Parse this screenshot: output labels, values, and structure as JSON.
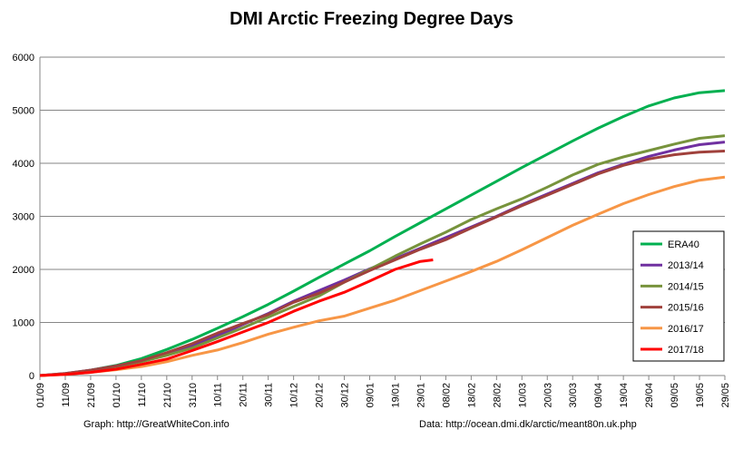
{
  "chart_data": {
    "type": "line",
    "title": "DMI Arctic Freezing Degree Days",
    "xlabel": "",
    "ylabel": "",
    "ylim": [
      0,
      6000
    ],
    "yticks": [
      0,
      1000,
      2000,
      3000,
      4000,
      5000,
      6000
    ],
    "x_tick_labels": [
      "01/09",
      "11/09",
      "21/09",
      "01/10",
      "11/10",
      "21/10",
      "31/10",
      "10/11",
      "20/11",
      "30/11",
      "10/12",
      "20/12",
      "30/12",
      "09/01",
      "19/01",
      "29/01",
      "08/02",
      "18/02",
      "28/02",
      "10/03",
      "20/03",
      "30/03",
      "09/04",
      "19/04",
      "29/04",
      "09/05",
      "19/05",
      "29/05"
    ],
    "x_unit": "day index from 01/09 (tick every 10 days)",
    "grid": true,
    "legend_position": "right",
    "series": [
      {
        "name": "ERA40",
        "color": "#00b050",
        "x": [
          0,
          10,
          20,
          30,
          40,
          50,
          60,
          70,
          80,
          90,
          100,
          110,
          120,
          130,
          140,
          150,
          160,
          170,
          180,
          190,
          200,
          210,
          220,
          230,
          240,
          250,
          260,
          270
        ],
        "y": [
          0,
          30,
          100,
          190,
          320,
          490,
          680,
          890,
          1110,
          1340,
          1590,
          1850,
          2100,
          2350,
          2620,
          2880,
          3140,
          3400,
          3660,
          3920,
          4170,
          4420,
          4660,
          4880,
          5080,
          5230,
          5330,
          5370
        ]
      },
      {
        "name": "2013/14",
        "color": "#7030a0",
        "x": [
          0,
          10,
          20,
          30,
          40,
          50,
          60,
          70,
          80,
          90,
          100,
          110,
          120,
          130,
          140,
          150,
          160,
          170,
          180,
          190,
          200,
          210,
          220,
          230,
          240,
          250,
          260,
          270
        ],
        "y": [
          0,
          40,
          100,
          180,
          270,
          400,
          560,
          750,
          960,
          1170,
          1400,
          1600,
          1800,
          2010,
          2200,
          2400,
          2600,
          2800,
          3000,
          3220,
          3420,
          3620,
          3820,
          3980,
          4130,
          4250,
          4350,
          4400
        ]
      },
      {
        "name": "2014/15",
        "color": "#77933c",
        "x": [
          0,
          10,
          20,
          30,
          40,
          50,
          60,
          70,
          80,
          90,
          100,
          110,
          120,
          130,
          140,
          150,
          160,
          170,
          180,
          190,
          200,
          210,
          220,
          230,
          240,
          250,
          260,
          270
        ],
        "y": [
          0,
          30,
          90,
          170,
          260,
          380,
          520,
          710,
          900,
          1100,
          1300,
          1500,
          1760,
          2000,
          2250,
          2480,
          2700,
          2940,
          3140,
          3330,
          3550,
          3780,
          3980,
          4120,
          4240,
          4360,
          4470,
          4520
        ]
      },
      {
        "name": "2015/16",
        "color": "#a0413c",
        "x": [
          0,
          10,
          20,
          30,
          40,
          50,
          60,
          70,
          80,
          90,
          100,
          110,
          120,
          130,
          140,
          150,
          160,
          170,
          180,
          190,
          200,
          210,
          220,
          230,
          240,
          250,
          260,
          270
        ],
        "y": [
          0,
          40,
          100,
          180,
          280,
          430,
          600,
          800,
          980,
          1150,
          1380,
          1550,
          1760,
          1980,
          2180,
          2380,
          2560,
          2780,
          2990,
          3200,
          3400,
          3600,
          3800,
          3960,
          4080,
          4160,
          4210,
          4230
        ]
      },
      {
        "name": "2016/17",
        "color": "#f79646",
        "x": [
          0,
          10,
          20,
          30,
          40,
          50,
          60,
          70,
          80,
          90,
          100,
          110,
          120,
          130,
          140,
          150,
          160,
          170,
          180,
          190,
          200,
          210,
          220,
          230,
          240,
          250,
          260,
          270
        ],
        "y": [
          0,
          20,
          60,
          110,
          170,
          260,
          380,
          480,
          620,
          780,
          910,
          1030,
          1120,
          1270,
          1420,
          1600,
          1780,
          1960,
          2150,
          2370,
          2600,
          2830,
          3040,
          3240,
          3410,
          3560,
          3680,
          3740
        ]
      },
      {
        "name": "2017/18",
        "color": "#ff0000",
        "x": [
          0,
          10,
          20,
          30,
          40,
          50,
          60,
          70,
          80,
          90,
          100,
          110,
          120,
          130,
          140,
          150,
          155
        ],
        "y": [
          0,
          20,
          60,
          120,
          210,
          310,
          470,
          640,
          820,
          1000,
          1210,
          1400,
          1570,
          1780,
          2000,
          2150,
          2180
        ]
      }
    ]
  },
  "credits": {
    "graph": "Graph: http://GreatWhiteCon.info",
    "data": "Data: http://ocean.dmi.dk/arctic/meant80n.uk.php"
  }
}
